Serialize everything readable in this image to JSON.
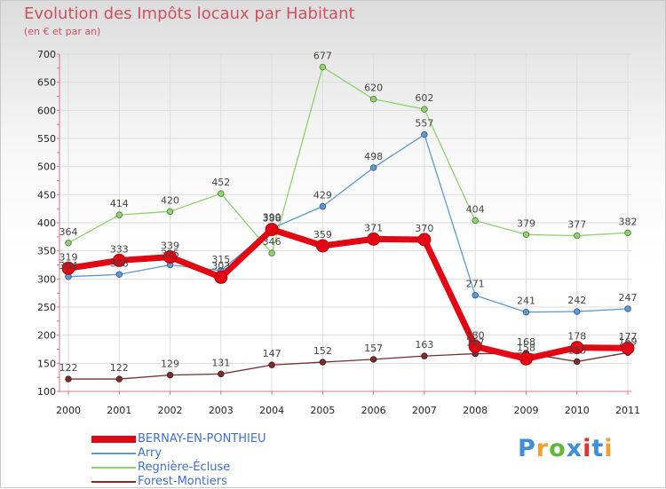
{
  "chart_data": {
    "type": "line",
    "title": "Evolution des Impôts locaux par Habitant",
    "subtitle": "(en € et par an)",
    "xlabel": "",
    "ylabel": "",
    "ylim": [
      100,
      700
    ],
    "yticks": [
      100,
      150,
      200,
      250,
      300,
      350,
      400,
      450,
      500,
      550,
      600,
      650,
      700
    ],
    "categories": [
      "2000",
      "2001",
      "2002",
      "2003",
      "2004",
      "2005",
      "2006",
      "2007",
      "2008",
      "2009",
      "2010",
      "2011"
    ],
    "series": [
      {
        "name": "BERNAY-EN-PONTHIEU",
        "color": "#e30613",
        "values": [
          319,
          333,
          339,
          303,
          388,
          359,
          371,
          370,
          180,
          158,
          178,
          177
        ]
      },
      {
        "name": "Arry",
        "color": "#5b9bd5",
        "values": [
          304,
          308,
          325,
          315,
          390,
          429,
          498,
          557,
          271,
          241,
          242,
          247
        ]
      },
      {
        "name": "Regnière-Écluse",
        "color": "#8fd36e",
        "values": [
          364,
          414,
          420,
          452,
          346,
          677,
          620,
          602,
          404,
          379,
          377,
          382
        ]
      },
      {
        "name": "Forest-Montiers",
        "color": "#7b2d2d",
        "values": [
          122,
          122,
          129,
          131,
          147,
          152,
          157,
          163,
          167,
          168,
          153,
          169
        ]
      }
    ],
    "legend_position": "bottom-left"
  },
  "logo": {
    "letters": [
      "P",
      "r",
      "o",
      "x",
      "i",
      "t",
      "i"
    ],
    "colors": [
      "#3f8ed8",
      "#f2a22c",
      "#62b83a",
      "#3f8ed8",
      "#e5332a",
      "#3f8ed8",
      "#f2a22c"
    ]
  }
}
